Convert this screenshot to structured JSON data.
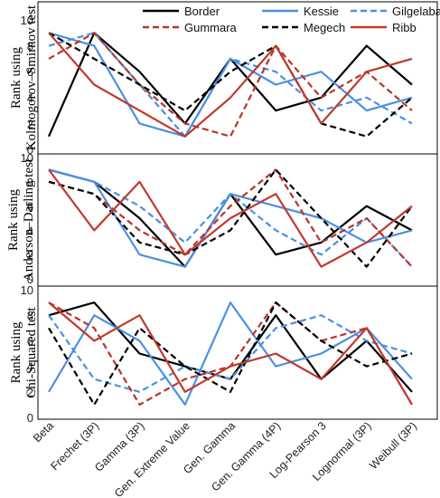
{
  "chart_data": {
    "type": "line",
    "categories": [
      "Beta",
      "Frechet (3P)",
      "Gamma (3P)",
      "Gen. Extreme Value",
      "Gen. Gamma",
      "Gen. Gamma (4P)",
      "Log-Pearson 3",
      "Lognormal (3P)",
      "Weibull (3P)"
    ],
    "legend": {
      "placement": "top",
      "entries": [
        "Border",
        "Kessie",
        "Gilgelabay",
        "Gummara",
        "Megech",
        "Ribb"
      ]
    },
    "series_styles": [
      {
        "name": "Border",
        "color": "#000000",
        "dash": "solid"
      },
      {
        "name": "Kessie",
        "color": "#4a90e2",
        "dash": "solid"
      },
      {
        "name": "Gilgelabay",
        "color": "#4a90e2",
        "dash": "dashed"
      },
      {
        "name": "Gummara",
        "color": "#b8342a",
        "dash": "dashed"
      },
      {
        "name": "Megech",
        "color": "#000000",
        "dash": "dashed"
      },
      {
        "name": "Ribb",
        "color": "#c0392b",
        "dash": "solid"
      }
    ],
    "panels": [
      {
        "ylabel_line1": "Rank using",
        "ylabel_line2": "Kolmogorov–Smirnov test",
        "ylim": [
          0,
          10
        ],
        "yticks": [
          0,
          2,
          4,
          6,
          8,
          10
        ],
        "series": [
          {
            "name": "Border",
            "values": [
              1,
              9,
              6,
              2,
              7,
              3,
              4,
              8,
              5
            ]
          },
          {
            "name": "Kessie",
            "values": [
              9,
              8,
              2,
              1,
              7,
              5,
              6,
              3,
              4
            ]
          },
          {
            "name": "Gilgelabay",
            "values": [
              8,
              9,
              5,
              1,
              7,
              6,
              3,
              4,
              2
            ]
          },
          {
            "name": "Gummara",
            "values": [
              7,
              9,
              5,
              2,
              1,
              8,
              4,
              6,
              3
            ]
          },
          {
            "name": "Megech",
            "values": [
              9,
              7,
              5,
              3,
              6,
              8,
              2,
              1,
              4
            ]
          },
          {
            "name": "Ribb",
            "values": [
              9,
              5,
              3,
              1,
              4,
              8,
              2,
              6,
              7
            ]
          }
        ]
      },
      {
        "ylabel_line1": "Rank using",
        "ylabel_line2": "Anderson–Darling test",
        "ylim": [
          0,
          10
        ],
        "yticks": [
          0,
          2,
          4,
          6,
          8,
          10
        ],
        "series": [
          {
            "name": "Border",
            "values": [
              9,
              8,
              5,
              1,
              7,
              2,
              3,
              6,
              4
            ]
          },
          {
            "name": "Kessie",
            "values": [
              9,
              8,
              2,
              1,
              7,
              6,
              5,
              3,
              4
            ]
          },
          {
            "name": "Gilgelabay",
            "values": [
              9,
              8,
              6,
              3,
              7,
              4,
              2,
              5,
              1
            ]
          },
          {
            "name": "Gummara",
            "values": [
              8,
              7,
              4,
              2,
              6,
              9,
              3,
              5,
              1
            ]
          },
          {
            "name": "Megech",
            "values": [
              8,
              7,
              3,
              2,
              4,
              9,
              5,
              1,
              6
            ]
          },
          {
            "name": "Ribb",
            "values": [
              9,
              4,
              8,
              2,
              5,
              7,
              1,
              3,
              6
            ]
          }
        ]
      },
      {
        "ylabel_line1": "Rank using",
        "ylabel_line2": "Chi-Squared test",
        "ylim": [
          0,
          10
        ],
        "yticks": [
          0,
          2,
          4,
          6,
          8,
          10
        ],
        "series": [
          {
            "name": "Border",
            "values": [
              8,
              9,
              5,
              4,
              3,
              8,
              3,
              6,
              2
            ]
          },
          {
            "name": "Kessie",
            "values": [
              2,
              8,
              6,
              1,
              9,
              4,
              5,
              7,
              3
            ]
          },
          {
            "name": "Gilgelabay",
            "values": [
              8,
              3,
              2,
              4,
              3,
              7,
              8,
              6,
              5
            ]
          },
          {
            "name": "Gummara",
            "values": [
              9,
              7,
              1,
              3,
              4,
              9,
              6,
              7,
              1
            ]
          },
          {
            "name": "Megech",
            "values": [
              7,
              1,
              7,
              4,
              2,
              9,
              6,
              4,
              5
            ]
          },
          {
            "name": "Ribb",
            "values": [
              9,
              6,
              8,
              2,
              4,
              5,
              3,
              7,
              1
            ]
          }
        ]
      }
    ]
  }
}
